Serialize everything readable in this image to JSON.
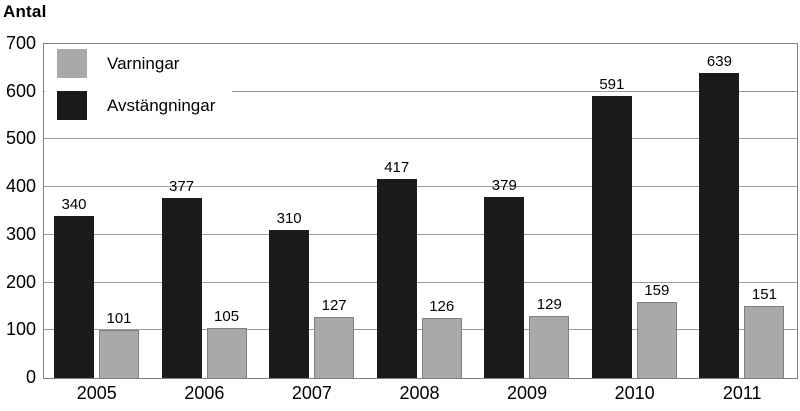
{
  "chart_data": {
    "type": "bar",
    "ylabel": "Antal",
    "categories": [
      "2005",
      "2006",
      "2007",
      "2008",
      "2009",
      "2010",
      "2011"
    ],
    "series": [
      {
        "name": "Varningar",
        "color": "#a9a9a9",
        "border": "#7f7f7f",
        "values": [
          101,
          105,
          127,
          126,
          129,
          159,
          151
        ]
      },
      {
        "name": "Avstängningar",
        "color": "#1b1b1b",
        "values": [
          340,
          377,
          310,
          417,
          379,
          591,
          639
        ]
      }
    ],
    "bar_draw_order": [
      1,
      0
    ],
    "ylim": [
      0,
      700
    ],
    "yticks": [
      0,
      100,
      200,
      300,
      400,
      500,
      600,
      700
    ],
    "grid": true,
    "legend_position": "top-left",
    "value_labels": true
  }
}
